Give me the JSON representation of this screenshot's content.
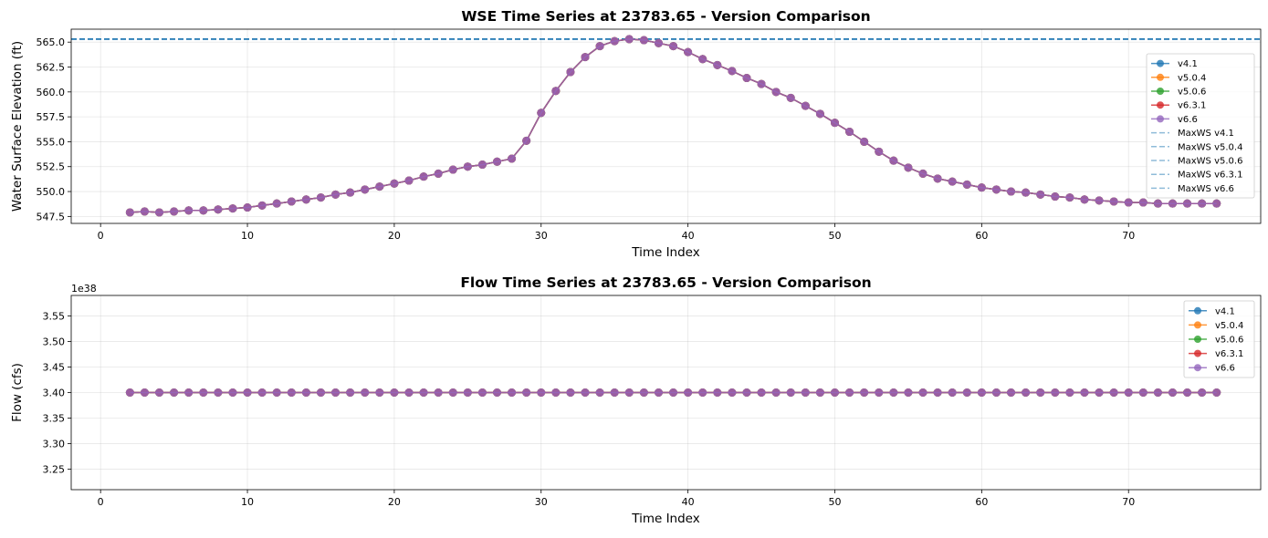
{
  "chart_data": [
    {
      "type": "line",
      "title": "WSE Time Series at 23783.65 - Version Comparison",
      "xlabel": "Time Index",
      "ylabel": "Water Surface Elevation (ft)",
      "xlim": [
        -2,
        79
      ],
      "ylim": [
        546.8,
        566.3
      ],
      "xticks": [
        0,
        10,
        20,
        30,
        40,
        50,
        60,
        70
      ],
      "yticks": [
        547.5,
        550.0,
        552.5,
        555.0,
        557.5,
        560.0,
        562.5,
        565.0
      ],
      "ytick_labels": [
        "547.5",
        "550.0",
        "552.5",
        "555.0",
        "557.5",
        "560.0",
        "562.5",
        "565.0"
      ],
      "grid": true,
      "legend_position": "center-right",
      "x": [
        2,
        3,
        4,
        5,
        6,
        7,
        8,
        9,
        10,
        11,
        12,
        13,
        14,
        15,
        16,
        17,
        18,
        19,
        20,
        21,
        22,
        23,
        24,
        25,
        26,
        27,
        28,
        29,
        30,
        31,
        32,
        33,
        34,
        35,
        36,
        37,
        38,
        39,
        40,
        41,
        42,
        43,
        44,
        45,
        46,
        47,
        48,
        49,
        50,
        51,
        52,
        53,
        54,
        55,
        56,
        57,
        58,
        59,
        60,
        61,
        62,
        63,
        64,
        65,
        66,
        67,
        68,
        69,
        70,
        71,
        72,
        73,
        74,
        75,
        76
      ],
      "y": [
        547.9,
        548.0,
        547.9,
        548.0,
        548.1,
        548.1,
        548.2,
        548.3,
        548.4,
        548.6,
        548.8,
        549.0,
        549.2,
        549.4,
        549.7,
        549.9,
        550.2,
        550.5,
        550.8,
        551.1,
        551.5,
        551.8,
        552.2,
        552.5,
        552.7,
        553.0,
        553.3,
        555.1,
        557.9,
        560.1,
        562.0,
        563.5,
        564.6,
        565.1,
        565.3,
        565.2,
        564.9,
        564.6,
        564.0,
        563.3,
        562.7,
        562.1,
        561.4,
        560.8,
        560.0,
        559.4,
        558.6,
        557.8,
        556.9,
        556.0,
        555.0,
        554.0,
        553.1,
        552.4,
        551.8,
        551.3,
        551.0,
        550.7,
        550.4,
        550.2,
        550.0,
        549.9,
        549.7,
        549.5,
        549.4,
        549.2,
        549.1,
        549.0,
        548.9,
        548.9,
        548.8,
        548.8,
        548.8,
        548.8,
        548.8
      ],
      "series": [
        {
          "name": "v4.1",
          "color": "#1f77b4"
        },
        {
          "name": "v5.0.4",
          "color": "#ff7f0e"
        },
        {
          "name": "v5.0.6",
          "color": "#2ca02c"
        },
        {
          "name": "v6.3.1",
          "color": "#d62728"
        },
        {
          "name": "v6.6",
          "color": "#9467bd"
        }
      ],
      "reference_lines": [
        {
          "name": "MaxWS v4.1",
          "value": 565.3,
          "color": "#1f77b4"
        },
        {
          "name": "MaxWS v5.0.4",
          "value": 565.3,
          "color": "#1f77b4"
        },
        {
          "name": "MaxWS v5.0.6",
          "value": 565.3,
          "color": "#1f77b4"
        },
        {
          "name": "MaxWS v6.3.1",
          "value": 565.3,
          "color": "#1f77b4"
        },
        {
          "name": "MaxWS v6.6",
          "value": 565.3,
          "color": "#1f77b4"
        }
      ]
    },
    {
      "type": "line",
      "title": "Flow Time Series at 23783.65 - Version Comparison",
      "xlabel": "Time Index",
      "ylabel": "Flow (cfs)",
      "offset_label": "1e38",
      "xlim": [
        -2,
        79
      ],
      "ylim": [
        3.21,
        3.59
      ],
      "xticks": [
        0,
        10,
        20,
        30,
        40,
        50,
        60,
        70
      ],
      "yticks": [
        3.25,
        3.3,
        3.35,
        3.4,
        3.45,
        3.5,
        3.55
      ],
      "ytick_labels": [
        "3.25",
        "3.30",
        "3.35",
        "3.40",
        "3.45",
        "3.50",
        "3.55"
      ],
      "grid": true,
      "legend_position": "top-right",
      "x": [
        2,
        3,
        4,
        5,
        6,
        7,
        8,
        9,
        10,
        11,
        12,
        13,
        14,
        15,
        16,
        17,
        18,
        19,
        20,
        21,
        22,
        23,
        24,
        25,
        26,
        27,
        28,
        29,
        30,
        31,
        32,
        33,
        34,
        35,
        36,
        37,
        38,
        39,
        40,
        41,
        42,
        43,
        44,
        45,
        46,
        47,
        48,
        49,
        50,
        51,
        52,
        53,
        54,
        55,
        56,
        57,
        58,
        59,
        60,
        61,
        62,
        63,
        64,
        65,
        66,
        67,
        68,
        69,
        70,
        71,
        72,
        73,
        74,
        75,
        76
      ],
      "y_constant": 3.4,
      "series": [
        {
          "name": "v4.1",
          "color": "#1f77b4"
        },
        {
          "name": "v5.0.4",
          "color": "#ff7f0e"
        },
        {
          "name": "v5.0.6",
          "color": "#2ca02c"
        },
        {
          "name": "v6.3.1",
          "color": "#d62728"
        },
        {
          "name": "v6.6",
          "color": "#9467bd"
        }
      ]
    }
  ]
}
